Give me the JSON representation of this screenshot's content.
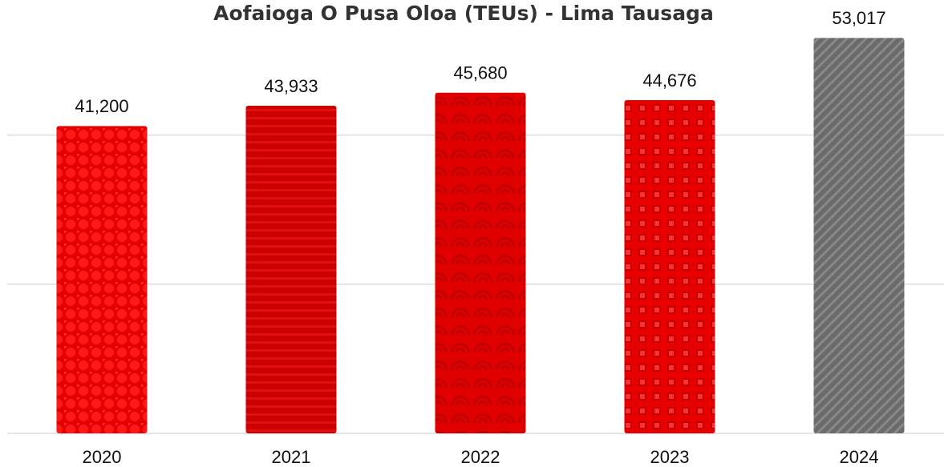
{
  "chart_data": {
    "type": "bar",
    "title": "Aofaioga O Pusa Oloa (TEUs) - Lima Tausaga",
    "categories": [
      "2020",
      "2021",
      "2022",
      "2023",
      "2024"
    ],
    "values": [
      41200,
      43933,
      45680,
      44676,
      53017
    ],
    "value_labels": [
      "41,200",
      "43,933",
      "45,680",
      "44,676",
      "53,017"
    ],
    "colors": [
      "#e80000",
      "#cc0000",
      "#e00000",
      "#e80000",
      "#6b6b6b"
    ],
    "ylim": [
      0,
      58000
    ],
    "yticks": [
      0,
      20000,
      40000
    ],
    "grid": true
  }
}
